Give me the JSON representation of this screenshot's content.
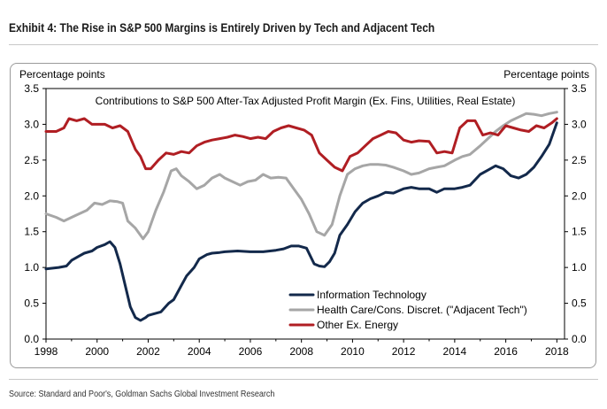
{
  "header": {
    "title": "Exhibit 4: The Rise in S&P 500 Margins is Entirely Driven by Tech and Adjacent Tech"
  },
  "footer": {
    "source": "Source: Standard and Poor's, Goldman Sachs Global Investment Research"
  },
  "chart_data": {
    "type": "line",
    "title": "Contributions to S&P 500 After-Tax Adjusted Profit Margin (Ex. Fins, Utilities, Real Estate)",
    "ylabel_left": "Percentage points",
    "ylabel_right": "Percentage points",
    "xlim": [
      1998,
      2018.3
    ],
    "ylim": [
      0,
      3.5
    ],
    "x_ticks": [
      "1998",
      "2000",
      "2002",
      "2004",
      "2006",
      "2008",
      "2010",
      "2012",
      "2014",
      "2016",
      "2018"
    ],
    "y_ticks": [
      "0.0",
      "0.5",
      "1.0",
      "1.5",
      "2.0",
      "2.5",
      "3.0",
      "3.5"
    ],
    "legend_position": "bottom-center",
    "series": [
      {
        "name": "Information Technology",
        "color": "#13294b",
        "x": [
          1998.0,
          1998.5,
          1998.8,
          1999.0,
          1999.3,
          1999.5,
          1999.8,
          2000.0,
          2000.3,
          2000.5,
          2000.7,
          2000.9,
          2001.1,
          2001.3,
          2001.5,
          2001.7,
          2001.9,
          2002.0,
          2002.2,
          2002.5,
          2002.8,
          2003.0,
          2003.3,
          2003.5,
          2003.8,
          2004.0,
          2004.3,
          2004.5,
          2004.8,
          2005.0,
          2005.5,
          2006.0,
          2006.5,
          2007.0,
          2007.3,
          2007.6,
          2007.9,
          2008.2,
          2008.5,
          2008.7,
          2008.9,
          2009.1,
          2009.3,
          2009.5,
          2009.8,
          2010.1,
          2010.4,
          2010.7,
          2011.0,
          2011.3,
          2011.6,
          2012.0,
          2012.3,
          2012.6,
          2013.0,
          2013.3,
          2013.6,
          2014.0,
          2014.3,
          2014.6,
          2015.0,
          2015.3,
          2015.6,
          2015.9,
          2016.2,
          2016.5,
          2016.8,
          2017.1,
          2017.4,
          2017.7,
          2018.0
        ],
        "values": [
          0.98,
          1.0,
          1.02,
          1.1,
          1.16,
          1.2,
          1.23,
          1.28,
          1.32,
          1.36,
          1.28,
          1.05,
          0.75,
          0.45,
          0.3,
          0.26,
          0.3,
          0.33,
          0.35,
          0.38,
          0.5,
          0.55,
          0.75,
          0.88,
          1.0,
          1.12,
          1.18,
          1.2,
          1.21,
          1.22,
          1.23,
          1.22,
          1.22,
          1.24,
          1.26,
          1.3,
          1.3,
          1.27,
          1.05,
          1.02,
          1.01,
          1.08,
          1.2,
          1.45,
          1.6,
          1.78,
          1.9,
          1.96,
          2.0,
          2.05,
          2.04,
          2.1,
          2.12,
          2.1,
          2.1,
          2.05,
          2.1,
          2.1,
          2.12,
          2.15,
          2.3,
          2.36,
          2.42,
          2.38,
          2.28,
          2.25,
          2.3,
          2.4,
          2.55,
          2.72,
          3.02
        ]
      },
      {
        "name": "Health Care/Cons. Discret. (\"Adjacent Tech\")",
        "color": "#a6a6a6",
        "x": [
          1998.0,
          1998.4,
          1998.7,
          1999.0,
          1999.3,
          1999.6,
          1999.9,
          2000.2,
          2000.5,
          2000.8,
          2001.0,
          2001.2,
          2001.5,
          2001.8,
          2002.0,
          2002.3,
          2002.6,
          2002.9,
          2003.1,
          2003.3,
          2003.6,
          2003.9,
          2004.2,
          2004.5,
          2004.8,
          2005.0,
          2005.3,
          2005.6,
          2005.9,
          2006.2,
          2006.5,
          2006.8,
          2007.1,
          2007.4,
          2007.7,
          2008.0,
          2008.3,
          2008.6,
          2008.9,
          2009.2,
          2009.5,
          2009.8,
          2010.1,
          2010.4,
          2010.7,
          2011.0,
          2011.3,
          2011.6,
          2012.0,
          2012.3,
          2012.6,
          2013.0,
          2013.3,
          2013.6,
          2014.0,
          2014.3,
          2014.6,
          2015.0,
          2015.3,
          2015.6,
          2015.9,
          2016.2,
          2016.5,
          2016.8,
          2017.1,
          2017.4,
          2017.7,
          2018.0
        ],
        "values": [
          1.75,
          1.7,
          1.65,
          1.7,
          1.75,
          1.8,
          1.9,
          1.88,
          1.93,
          1.92,
          1.9,
          1.65,
          1.55,
          1.4,
          1.5,
          1.8,
          2.05,
          2.35,
          2.38,
          2.28,
          2.2,
          2.1,
          2.15,
          2.25,
          2.3,
          2.25,
          2.2,
          2.15,
          2.2,
          2.22,
          2.3,
          2.25,
          2.26,
          2.25,
          2.1,
          1.95,
          1.75,
          1.5,
          1.45,
          1.6,
          2.0,
          2.3,
          2.38,
          2.42,
          2.44,
          2.44,
          2.43,
          2.4,
          2.35,
          2.3,
          2.32,
          2.38,
          2.4,
          2.42,
          2.5,
          2.55,
          2.58,
          2.7,
          2.8,
          2.9,
          2.98,
          3.05,
          3.1,
          3.15,
          3.14,
          3.12,
          3.15,
          3.17
        ]
      },
      {
        "name": "Other Ex. Energy",
        "color": "#b01e23",
        "x": [
          1998.0,
          1998.4,
          1998.7,
          1998.9,
          1999.2,
          1999.5,
          1999.8,
          2000.0,
          2000.3,
          2000.6,
          2000.9,
          2001.2,
          2001.5,
          2001.7,
          2001.9,
          2002.1,
          2002.4,
          2002.7,
          2003.0,
          2003.3,
          2003.6,
          2003.9,
          2004.2,
          2004.5,
          2004.8,
          2005.1,
          2005.4,
          2005.7,
          2006.0,
          2006.3,
          2006.6,
          2006.9,
          2007.2,
          2007.5,
          2007.8,
          2008.1,
          2008.4,
          2008.7,
          2009.0,
          2009.3,
          2009.6,
          2009.9,
          2010.2,
          2010.5,
          2010.8,
          2011.1,
          2011.4,
          2011.7,
          2012.0,
          2012.3,
          2012.6,
          2013.0,
          2013.3,
          2013.6,
          2013.9,
          2014.2,
          2014.5,
          2014.8,
          2015.1,
          2015.4,
          2015.7,
          2016.0,
          2016.3,
          2016.6,
          2016.9,
          2017.2,
          2017.5,
          2017.8,
          2018.0
        ],
        "values": [
          2.9,
          2.9,
          2.95,
          3.08,
          3.05,
          3.08,
          3.0,
          3.0,
          3.0,
          2.95,
          2.98,
          2.9,
          2.65,
          2.55,
          2.38,
          2.38,
          2.5,
          2.6,
          2.58,
          2.62,
          2.6,
          2.7,
          2.75,
          2.78,
          2.8,
          2.82,
          2.85,
          2.83,
          2.8,
          2.82,
          2.8,
          2.9,
          2.95,
          2.98,
          2.95,
          2.92,
          2.85,
          2.6,
          2.5,
          2.4,
          2.35,
          2.55,
          2.6,
          2.7,
          2.8,
          2.85,
          2.9,
          2.88,
          2.78,
          2.75,
          2.77,
          2.76,
          2.6,
          2.62,
          2.6,
          2.95,
          3.05,
          3.05,
          2.85,
          2.88,
          2.85,
          2.98,
          2.95,
          2.92,
          2.9,
          2.98,
          2.95,
          3.02,
          3.08
        ]
      }
    ]
  }
}
